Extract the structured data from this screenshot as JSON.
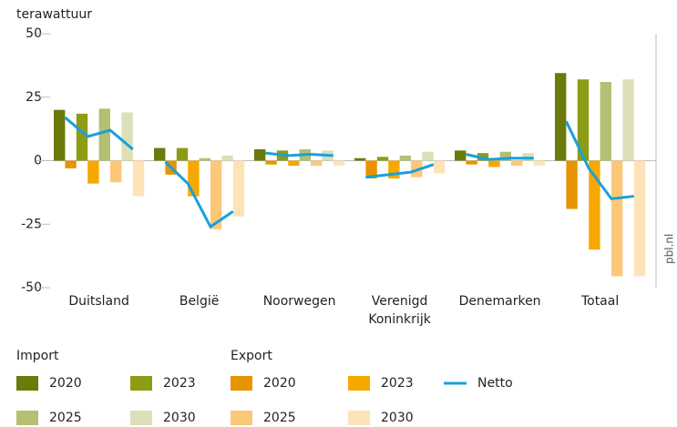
{
  "chart_data": {
    "type": "bar",
    "y_axis_label": "terawattuur",
    "source": "pbl.nl",
    "categories": [
      "Duitsland",
      "België",
      "Noorwegen",
      "Verenigd Koninkrijk",
      "Denemarken",
      "Totaal"
    ],
    "ylim": [
      -50,
      50
    ],
    "yticks": [
      -50,
      -25,
      0,
      25,
      50
    ],
    "series_groups": [
      {
        "name": "Import",
        "series": [
          {
            "name": "2020",
            "color": "#6b7a0a",
            "values": [
              20,
              5,
              4.5,
              1,
              4,
              34.5
            ]
          },
          {
            "name": "2023",
            "color": "#8c9c14",
            "values": [
              18.5,
              5,
              4,
              1.5,
              3,
              32
            ]
          },
          {
            "name": "2025",
            "color": "#b4bf72",
            "values": [
              20.5,
              1,
              4.5,
              2,
              3.5,
              31
            ]
          },
          {
            "name": "2030",
            "color": "#dcdfb8",
            "values": [
              19,
              2,
              4,
              3.5,
              3,
              32
            ]
          }
        ]
      },
      {
        "name": "Export",
        "series": [
          {
            "name": "2020",
            "color": "#e89400",
            "values": [
              -3,
              -5.5,
              -1.5,
              -7,
              -1.5,
              -19
            ]
          },
          {
            "name": "2023",
            "color": "#f7a800",
            "values": [
              -9,
              -14,
              -2,
              -7,
              -2.5,
              -35
            ]
          },
          {
            "name": "2025",
            "color": "#fcc878",
            "values": [
              -8.5,
              -27,
              -2,
              -6.5,
              -2,
              -45.5
            ]
          },
          {
            "name": "2030",
            "color": "#fde4b8",
            "values": [
              -14,
              -22,
              -2,
              -5,
              -2,
              -45.5
            ]
          }
        ]
      }
    ],
    "line_series": {
      "name": "Netto",
      "color": "#1aa0dc",
      "values": [
        [
          17,
          9.5,
          12,
          4.5
        ],
        [
          -0.5,
          -9,
          -26,
          -20
        ],
        [
          3,
          2,
          2.5,
          2
        ],
        [
          -6.5,
          -5.5,
          -4.5,
          -1.5
        ],
        [
          2.5,
          0.5,
          1,
          1
        ],
        [
          15.5,
          -3,
          -15,
          -14
        ]
      ]
    }
  }
}
